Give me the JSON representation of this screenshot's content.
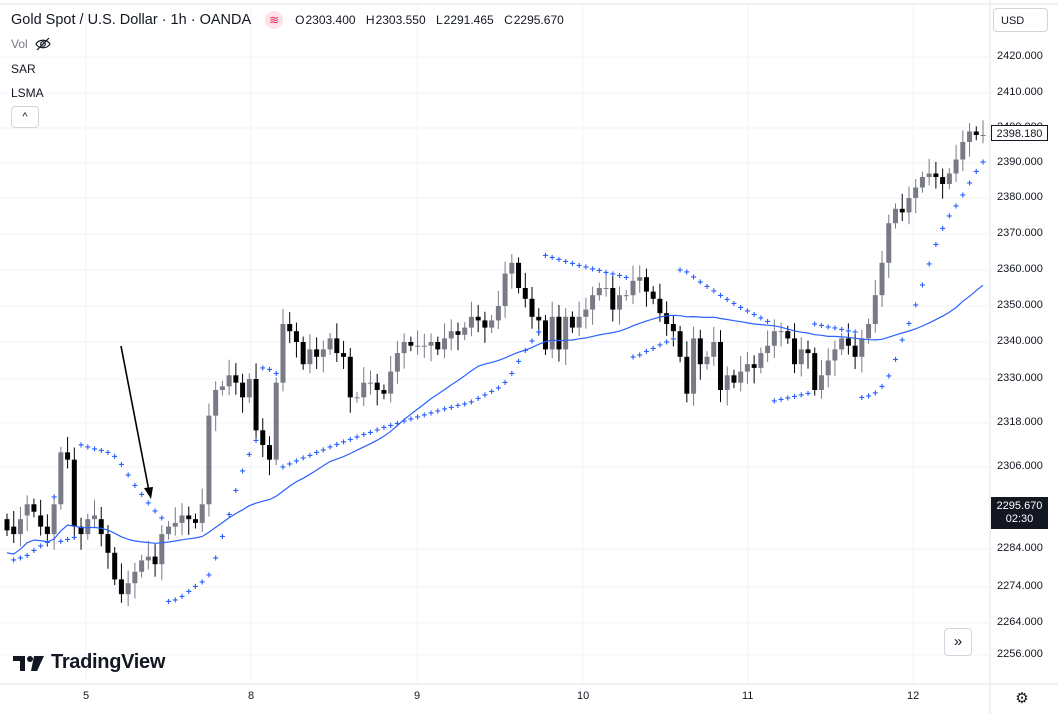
{
  "header": {
    "title": "Gold Spot / U.S. Dollar · 1h · OANDA",
    "indicator_icon": "≋",
    "ohlc": [
      {
        "key": "O",
        "value": "2303.400"
      },
      {
        "key": "H",
        "value": "2303.550"
      },
      {
        "key": "L",
        "value": "2291.465"
      },
      {
        "key": "C",
        "value": "2295.670"
      }
    ]
  },
  "legend": {
    "vol": "Vol",
    "sar": "SAR",
    "lsma": "LSMA",
    "collapse_icon": "^"
  },
  "currency_label": "USD",
  "price_scale": {
    "ticks": [
      "2420.000",
      "2410.000",
      "2400.000",
      "2390.000",
      "2380.000",
      "2370.000",
      "2360.000",
      "2350.000",
      "2340.000",
      "2330.000",
      "2318.000",
      "2306.000",
      "2284.000",
      "2274.000",
      "2264.000",
      "2256.000"
    ],
    "last_price_label": "2398.180",
    "current_price_label": "2295.670",
    "countdown_label": "02:30"
  },
  "time_scale": {
    "ticks": [
      "5",
      "8",
      "9",
      "10",
      "11",
      "12"
    ]
  },
  "branding": {
    "logo_text": "TradingView"
  },
  "buttons": {
    "goto_realtime": "»",
    "settings": "⚙"
  },
  "colors": {
    "candle_up": "#787b86",
    "candle_down": "#000000",
    "sar": "#2962ff",
    "lsma": "#2962ff",
    "arrow": "#000000"
  },
  "chart_data": {
    "type": "candlestick",
    "title": "Gold Spot / U.S. Dollar · 1h · OANDA",
    "y_axis_labels": [
      2420,
      2410,
      2400,
      2390,
      2380,
      2370,
      2360,
      2350,
      2340,
      2330,
      2318,
      2306,
      2284,
      2274,
      2264,
      2256
    ],
    "x_axis_labels": [
      "5",
      "8",
      "9",
      "10",
      "11",
      "12"
    ],
    "close": [
      2289,
      2288,
      2292,
      2296,
      2294,
      2290,
      2288,
      2296,
      2310,
      2308,
      2290,
      2288,
      2292,
      2293,
      2288,
      2283,
      2276,
      2272,
      2275,
      2278,
      2281,
      2282,
      2280,
      2288,
      2290,
      2291,
      2293,
      2292,
      2291,
      2296,
      2320,
      2327,
      2328,
      2331,
      2329,
      2325,
      2330,
      2316,
      2312,
      2308,
      2329,
      2345,
      2343,
      2340,
      2334,
      2338,
      2336,
      2338,
      2341,
      2337,
      2336,
      2325,
      2325,
      2329,
      2329,
      2327,
      2326,
      2332,
      2337,
      2340,
      2339,
      2339,
      2339,
      2340,
      2338,
      2341,
      2343,
      2342,
      2344,
      2347,
      2346,
      2344,
      2346,
      2350,
      2359,
      2362,
      2355,
      2352,
      2347,
      2346,
      2338,
      2347,
      2338,
      2347,
      2344,
      2347,
      2349,
      2353,
      2355,
      2355,
      2349,
      2353,
      2353,
      2357,
      2358,
      2354,
      2352,
      2348,
      2345,
      2343,
      2336,
      2326,
      2341,
      2334,
      2336,
      2340,
      2327,
      2331,
      2329,
      2332,
      2334,
      2333,
      2337,
      2339,
      2343,
      2343,
      2341,
      2334,
      2338,
      2337,
      2327,
      2331,
      2335,
      2338,
      2341,
      2339,
      2336,
      2341,
      2345,
      2353,
      2362,
      2373,
      2377,
      2376,
      2380,
      2383,
      2386,
      2387,
      2386,
      2384,
      2387,
      2391,
      2396,
      2399,
      2398,
      2398
    ],
    "open": [
      2292,
      2290,
      2288,
      2293,
      2296,
      2293,
      2290,
      2288,
      2296,
      2310,
      2308,
      2290,
      2288,
      2292,
      2292,
      2288,
      2283,
      2276,
      2272,
      2275,
      2278,
      2281,
      2282,
      2280,
      2288,
      2290,
      2291,
      2293,
      2292,
      2291,
      2296,
      2320,
      2327,
      2328,
      2331,
      2329,
      2325,
      2330,
      2316,
      2312,
      2308,
      2329,
      2345,
      2343,
      2340,
      2334,
      2338,
      2336,
      2338,
      2341,
      2337,
      2336,
      2325,
      2325,
      2329,
      2329,
      2327,
      2326,
      2332,
      2337,
      2340,
      2339,
      2339,
      2339,
      2340,
      2338,
      2341,
      2343,
      2342,
      2344,
      2347,
      2346,
      2344,
      2346,
      2350,
      2359,
      2362,
      2355,
      2352,
      2347,
      2346,
      2338,
      2347,
      2338,
      2347,
      2344,
      2347,
      2349,
      2353,
      2355,
      2355,
      2349,
      2353,
      2353,
      2357,
      2358,
      2354,
      2352,
      2348,
      2345,
      2343,
      2336,
      2326,
      2341,
      2334,
      2336,
      2340,
      2327,
      2331,
      2329,
      2332,
      2334,
      2333,
      2337,
      2339,
      2343,
      2343,
      2341,
      2334,
      2338,
      2337,
      2327,
      2331,
      2335,
      2338,
      2341,
      2339,
      2336,
      2341,
      2345,
      2353,
      2362,
      2373,
      2377,
      2376,
      2380,
      2383,
      2386,
      2387,
      2386,
      2384,
      2387,
      2391,
      2396,
      2399,
      2398
    ]
  }
}
